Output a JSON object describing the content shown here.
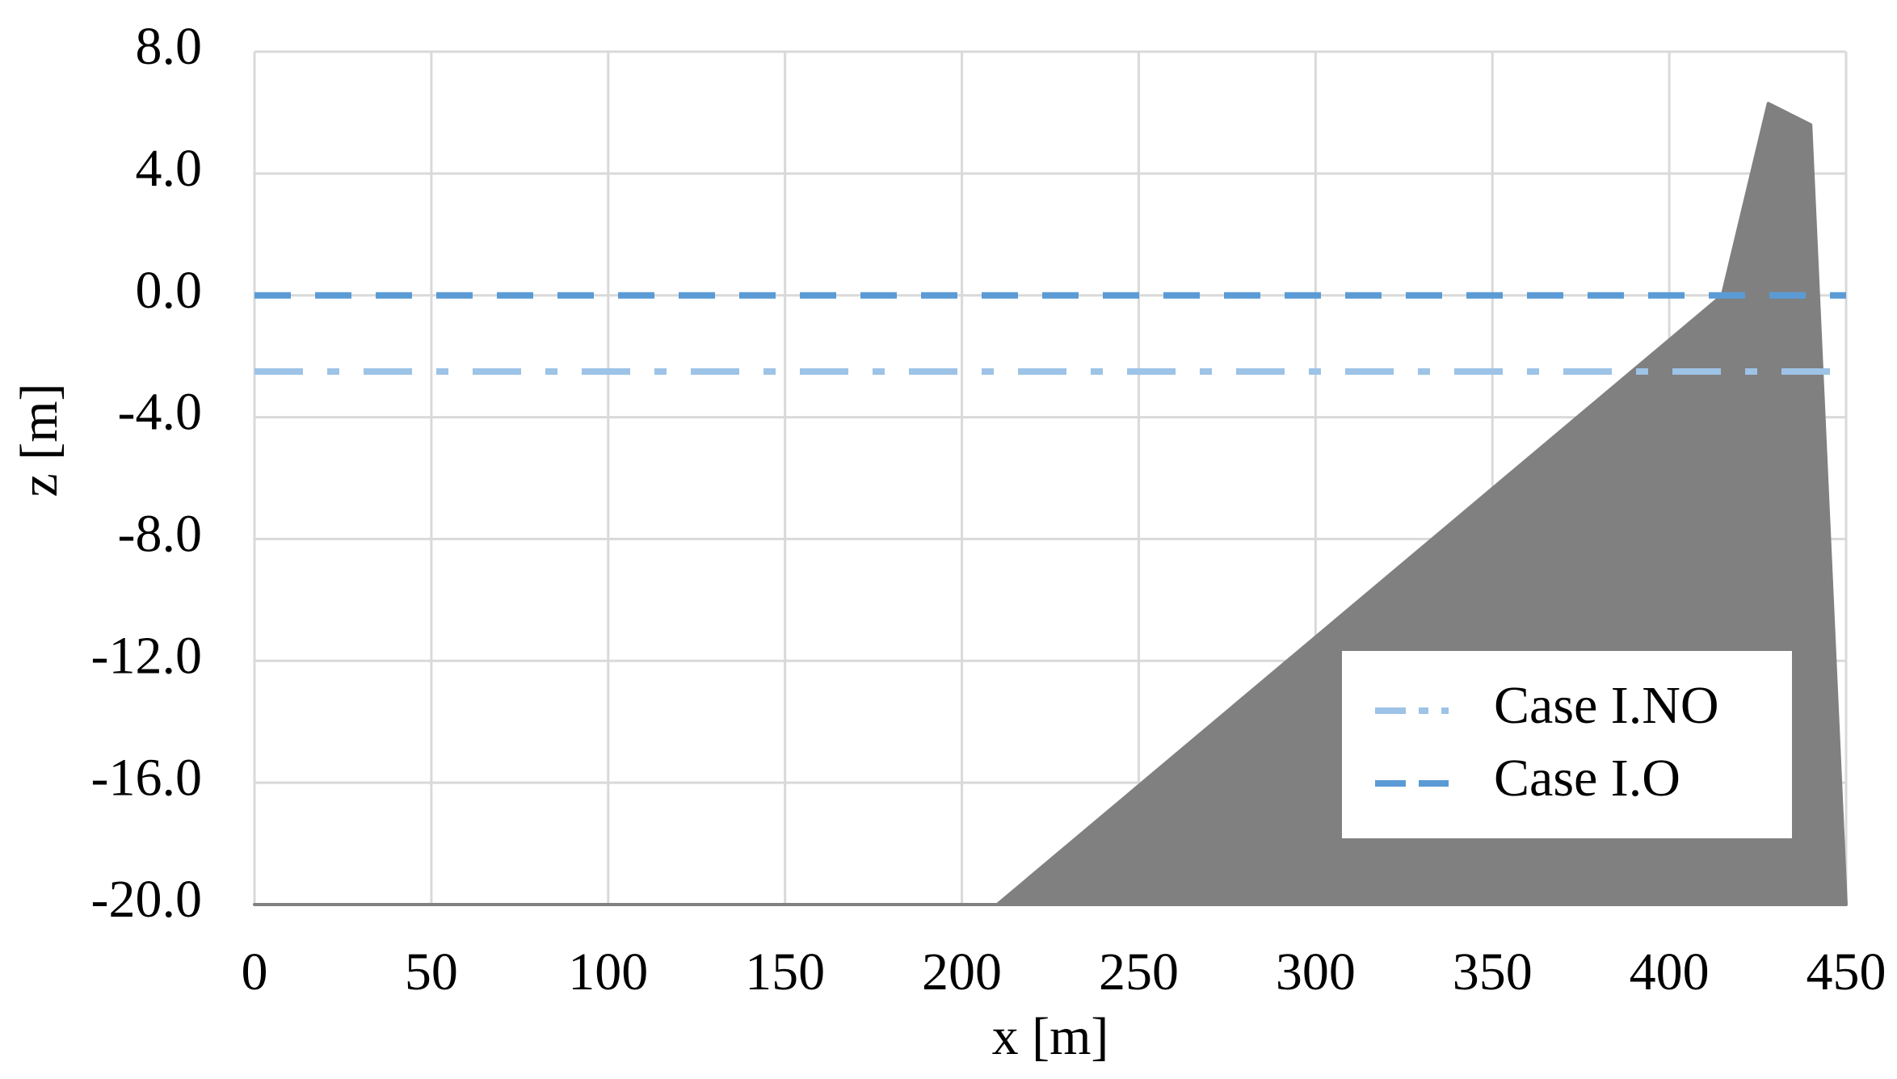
{
  "chart_data": {
    "type": "line",
    "x_label": "x [m]",
    "y_label": "z [m]",
    "xlim": [
      0,
      450
    ],
    "xticks": [
      0,
      50,
      100,
      150,
      200,
      250,
      300,
      350,
      400,
      450
    ],
    "ylim": [
      -20,
      8
    ],
    "yticks": [
      {
        "value": -20,
        "label": "-20.0"
      },
      {
        "value": -16,
        "label": "-16.0"
      },
      {
        "value": -12,
        "label": "-12.0"
      },
      {
        "value": -8,
        "label": "-8.0"
      },
      {
        "value": -4,
        "label": "-4.0"
      },
      {
        "value": 0,
        "label": "0.0"
      },
      {
        "value": 4,
        "label": "4.0"
      },
      {
        "value": 8,
        "label": "8.0"
      }
    ],
    "grid": true,
    "legend": "lower right",
    "area": {
      "color": "#808080",
      "x": [
        0,
        210,
        415,
        428,
        440,
        450
      ],
      "values": [
        -20,
        -20,
        0,
        6.3,
        5.6,
        -20
      ]
    },
    "series": [
      {
        "name": "Case I.NO",
        "color": "#9dc3e6",
        "dash": "dashdot",
        "x": [
          0,
          450
        ],
        "values": [
          -2.5,
          -2.5
        ]
      },
      {
        "name": "Case I.O",
        "color": "#5b9bd5",
        "dash": "dashed",
        "x": [
          0,
          450
        ],
        "values": [
          0,
          0
        ]
      }
    ]
  }
}
